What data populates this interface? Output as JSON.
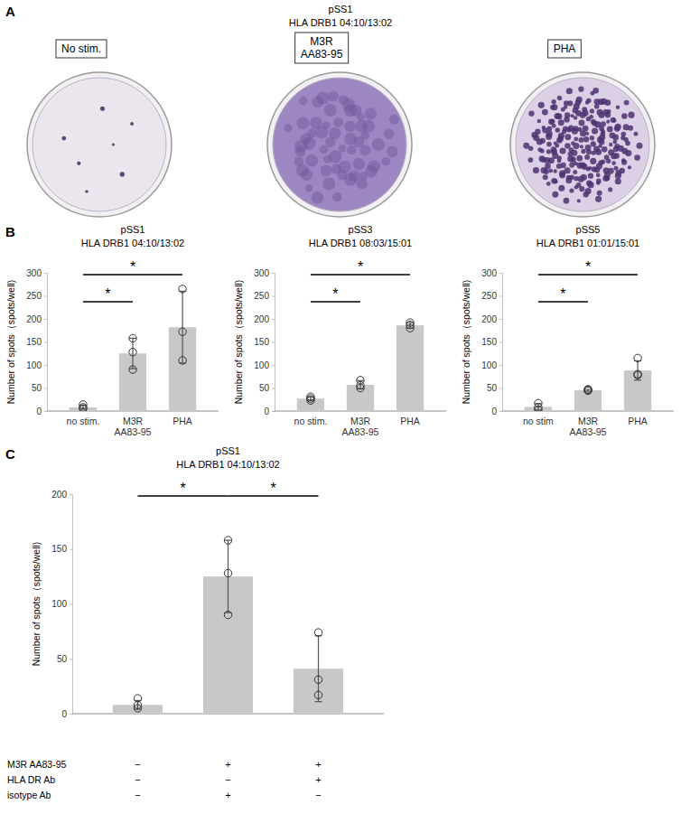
{
  "panel_labels": [
    "A",
    "B",
    "C"
  ],
  "panel_a": {
    "title": "pSS1",
    "subtitle": "HLA DRB1 04:10/13:02",
    "wells": [
      "No stim.",
      "M3R\nAA83-95",
      "PHA"
    ]
  },
  "chart_data": [
    {
      "type": "bar",
      "title": "pSS1",
      "subtitle": "HLA DRB1 04:10/13:02",
      "y_label": "Number of spots（spots/well)",
      "categories": [
        "no stim.",
        "M3R\nAA83-95",
        "PHA"
      ],
      "values": [
        8,
        125,
        182
      ],
      "errors": [
        4,
        33,
        78
      ],
      "points": [
        [
          5,
          8,
          14
        ],
        [
          90,
          128,
          158
        ],
        [
          110,
          172,
          265
        ]
      ],
      "color": "#c8c8c8",
      "ylim": [
        0,
        300
      ],
      "yticks": [
        0,
        50,
        100,
        150,
        200,
        250,
        300
      ],
      "grid": false,
      "annotations": [
        {
          "text": "*",
          "from": 0,
          "to": 1
        },
        {
          "text": "*",
          "from": 0,
          "to": 2
        }
      ]
    },
    {
      "type": "bar",
      "title": "pSS3",
      "subtitle": "HLA DRB1 08:03/15:01",
      "y_label": "Number of spots（spots/well)",
      "categories": [
        "no stim.",
        "M3R\nAA83-95",
        "PHA"
      ],
      "values": [
        27,
        57,
        186
      ],
      "errors": [
        4,
        9,
        6
      ],
      "points": [
        [
          23,
          27,
          31
        ],
        [
          50,
          56,
          67
        ],
        [
          180,
          187,
          192
        ]
      ],
      "color": "#c8c8c8",
      "ylim": [
        0,
        300
      ],
      "yticks": [
        0,
        50,
        100,
        150,
        200,
        250,
        300
      ],
      "grid": false,
      "annotations": [
        {
          "text": "*",
          "from": 0,
          "to": 1
        },
        {
          "text": "*",
          "from": 0,
          "to": 2
        }
      ]
    },
    {
      "type": "bar",
      "title": "pSS5",
      "subtitle": "HLA DRB1 01:01/15:01",
      "y_label": "Number of spots（spots/well)",
      "categories": [
        "no stim",
        "M3R\nAA83-95",
        "PHA"
      ],
      "values": [
        9,
        45,
        88
      ],
      "errors": [
        7,
        2,
        21
      ],
      "points": [
        [
          3,
          8,
          17
        ],
        [
          44,
          46,
          47
        ],
        [
          78,
          80,
          115
        ]
      ],
      "color": "#c8c8c8",
      "ylim": [
        0,
        300
      ],
      "yticks": [
        0,
        50,
        100,
        150,
        200,
        250,
        300
      ],
      "grid": false,
      "annotations": [
        {
          "text": "*",
          "from": 0,
          "to": 1
        },
        {
          "text": "*",
          "from": 0,
          "to": 2
        }
      ]
    },
    {
      "type": "bar",
      "title": "pSS1",
      "subtitle": "HLA DRB1 04:10/13:02",
      "y_label": "Number of spots（spots/well)",
      "categories": [
        null,
        null,
        null
      ],
      "values": [
        8,
        125,
        41
      ],
      "errors": [
        4,
        33,
        30
      ],
      "points": [
        [
          5,
          8,
          14
        ],
        [
          90,
          128,
          158
        ],
        [
          17,
          31,
          74
        ]
      ],
      "color": "#c8c8c8",
      "ylim": [
        0,
        200
      ],
      "yticks": [
        0,
        50,
        100,
        150,
        200
      ],
      "grid": false,
      "annotations": [
        {
          "text": "*",
          "from": 0,
          "to": 1
        },
        {
          "text": "*",
          "from": 1,
          "to": 2
        }
      ],
      "table": {
        "rows": [
          {
            "label": "M3R AA83-95",
            "cells": [
              "−",
              "+",
              "+"
            ]
          },
          {
            "label": "HLA DR Ab",
            "cells": [
              "−",
              "−",
              "+"
            ]
          },
          {
            "label": "isotype Ab",
            "cells": [
              "−",
              "+",
              "−"
            ]
          }
        ]
      }
    }
  ]
}
